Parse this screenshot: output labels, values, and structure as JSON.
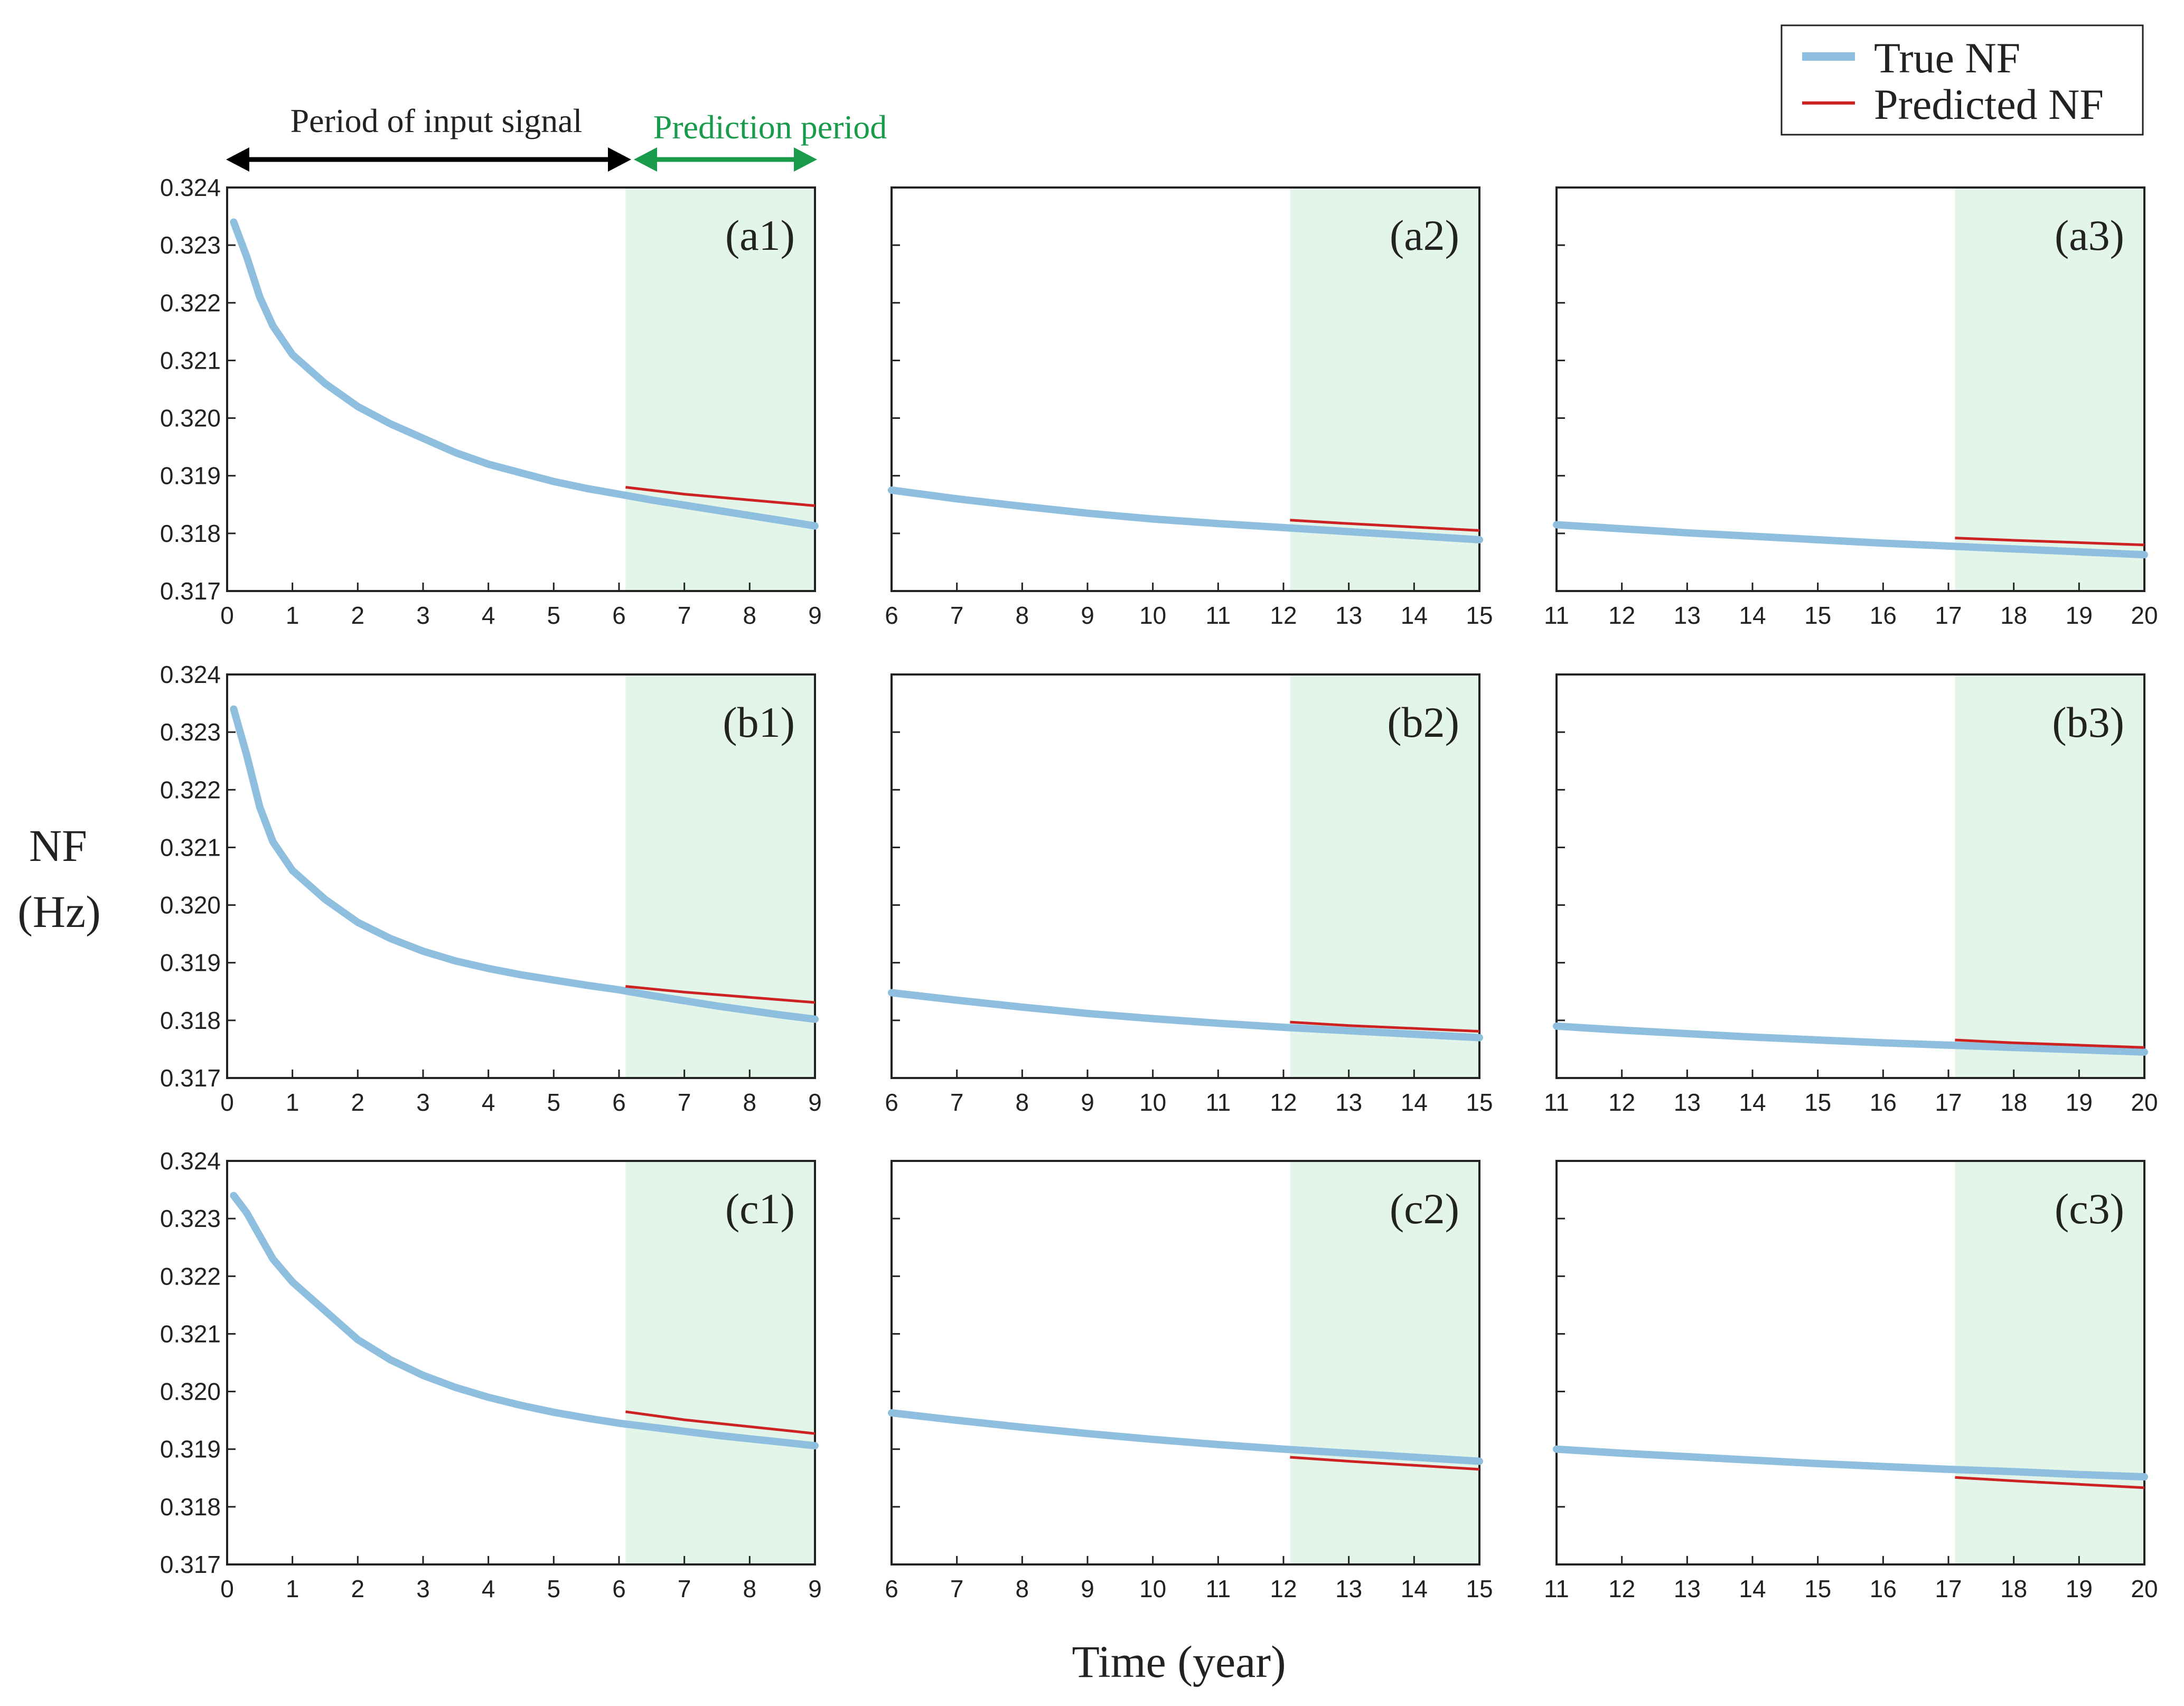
{
  "chart_data": {
    "type": "line",
    "ylabel_line1": "NF",
    "ylabel_line2": "(Hz)",
    "xlabel": "Time (year)",
    "ylim": [
      0.317,
      0.324
    ],
    "yticks": [
      "0.317",
      "0.318",
      "0.319",
      "0.320",
      "0.321",
      "0.322",
      "0.323",
      "0.324"
    ],
    "legend": {
      "position": "top-right",
      "entries": [
        {
          "label": "True NF",
          "color": "#8fbfdf"
        },
        {
          "label": "Predicted NF",
          "color": "#cc2222"
        }
      ]
    },
    "annotations": {
      "input_period": "Period of input signal",
      "prediction_period": "Prediction period"
    },
    "colors": {
      "true": "#8fbfdf",
      "predicted": "#cc2222",
      "shade": "#e3f5e9",
      "arrow_input": "#000000",
      "arrow_prediction": "#1a9b4b",
      "annotation_prediction": "#1a9b4b"
    },
    "panels": [
      {
        "id": "a1",
        "tag": "(a1)",
        "xlim": [
          0,
          9
        ],
        "xticks": [
          "0",
          "1",
          "2",
          "3",
          "4",
          "5",
          "6",
          "7",
          "8",
          "9"
        ],
        "shade": [
          6.1,
          9
        ],
        "true": {
          "x": [
            0.1,
            0.3,
            0.5,
            0.7,
            1,
            1.5,
            2,
            2.5,
            3,
            3.5,
            4,
            4.5,
            5,
            5.5,
            6,
            6.5,
            7,
            7.5,
            8,
            8.5,
            9
          ],
          "y": [
            0.3234,
            0.3228,
            0.3221,
            0.3216,
            0.3211,
            0.3206,
            0.3202,
            0.3199,
            0.31965,
            0.3194,
            0.3192,
            0.31905,
            0.3189,
            0.31878,
            0.31868,
            0.31858,
            0.31849,
            0.3184,
            0.31831,
            0.31822,
            0.31813
          ]
        },
        "predicted": {
          "x": [
            6.1,
            7,
            8,
            9
          ],
          "y": [
            0.3188,
            0.31868,
            0.31858,
            0.31848
          ]
        }
      },
      {
        "id": "a2",
        "tag": "(a2)",
        "xlim": [
          6,
          15
        ],
        "xticks": [
          "6",
          "7",
          "8",
          "9",
          "10",
          "11",
          "12",
          "13",
          "14",
          "15"
        ],
        "shade": [
          12.1,
          15
        ],
        "true": {
          "x": [
            6,
            7,
            8,
            9,
            10,
            11,
            12,
            13,
            14,
            15
          ],
          "y": [
            0.31875,
            0.3186,
            0.31847,
            0.31835,
            0.31825,
            0.31817,
            0.3181,
            0.31803,
            0.31796,
            0.31789
          ]
        },
        "predicted": {
          "x": [
            12.1,
            13,
            14,
            15
          ],
          "y": [
            0.31823,
            0.31817,
            0.31811,
            0.31805
          ]
        }
      },
      {
        "id": "a3",
        "tag": "(a3)",
        "xlim": [
          11,
          20
        ],
        "xticks": [
          "11",
          "12",
          "13",
          "14",
          "15",
          "16",
          "17",
          "18",
          "19",
          "20"
        ],
        "shade": [
          17.1,
          20
        ],
        "true": {
          "x": [
            11,
            12,
            13,
            14,
            15,
            16,
            17,
            18,
            19,
            20
          ],
          "y": [
            0.31815,
            0.31808,
            0.31801,
            0.31795,
            0.31789,
            0.31783,
            0.31778,
            0.31773,
            0.31768,
            0.31763
          ]
        },
        "predicted": {
          "x": [
            17.1,
            18,
            19,
            20
          ],
          "y": [
            0.31792,
            0.31788,
            0.31784,
            0.3178
          ]
        }
      },
      {
        "id": "b1",
        "tag": "(b1)",
        "xlim": [
          0,
          9
        ],
        "xticks": [
          "0",
          "1",
          "2",
          "3",
          "4",
          "5",
          "6",
          "7",
          "8",
          "9"
        ],
        "shade": [
          6.1,
          9
        ],
        "true": {
          "x": [
            0.1,
            0.3,
            0.5,
            0.7,
            1,
            1.5,
            2,
            2.5,
            3,
            3.5,
            4,
            4.5,
            5,
            5.5,
            6,
            6.5,
            7,
            7.5,
            8,
            8.5,
            9
          ],
          "y": [
            0.3234,
            0.3226,
            0.3217,
            0.3211,
            0.3206,
            0.3201,
            0.3197,
            0.31942,
            0.3192,
            0.31903,
            0.3189,
            0.31879,
            0.3187,
            0.31861,
            0.31853,
            0.31843,
            0.31834,
            0.31825,
            0.31817,
            0.31809,
            0.31802
          ]
        },
        "predicted": {
          "x": [
            6.1,
            7,
            8,
            9
          ],
          "y": [
            0.31859,
            0.31849,
            0.3184,
            0.31831
          ]
        }
      },
      {
        "id": "b2",
        "tag": "(b2)",
        "xlim": [
          6,
          15
        ],
        "xticks": [
          "6",
          "7",
          "8",
          "9",
          "10",
          "11",
          "12",
          "13",
          "14",
          "15"
        ],
        "shade": [
          12.1,
          15
        ],
        "true": {
          "x": [
            6,
            7,
            8,
            9,
            10,
            11,
            12,
            13,
            14,
            15
          ],
          "y": [
            0.31848,
            0.31835,
            0.31823,
            0.31812,
            0.31803,
            0.31795,
            0.31788,
            0.31782,
            0.31776,
            0.3177
          ]
        },
        "predicted": {
          "x": [
            12.1,
            13,
            14,
            15
          ],
          "y": [
            0.31797,
            0.31791,
            0.31786,
            0.31781
          ]
        }
      },
      {
        "id": "b3",
        "tag": "(b3)",
        "xlim": [
          11,
          20
        ],
        "xticks": [
          "11",
          "12",
          "13",
          "14",
          "15",
          "16",
          "17",
          "18",
          "19",
          "20"
        ],
        "shade": [
          17.1,
          20
        ],
        "true": {
          "x": [
            11,
            12,
            13,
            14,
            15,
            16,
            17,
            18,
            19,
            20
          ],
          "y": [
            0.3179,
            0.31783,
            0.31777,
            0.31771,
            0.31766,
            0.31761,
            0.31757,
            0.31753,
            0.31749,
            0.31745
          ]
        },
        "predicted": {
          "x": [
            17.1,
            18,
            19,
            20
          ],
          "y": [
            0.31766,
            0.31761,
            0.31757,
            0.31753
          ]
        }
      },
      {
        "id": "c1",
        "tag": "(c1)",
        "xlim": [
          0,
          9
        ],
        "xticks": [
          "0",
          "1",
          "2",
          "3",
          "4",
          "5",
          "6",
          "7",
          "8",
          "9"
        ],
        "shade": [
          6.1,
          9
        ],
        "true": {
          "x": [
            0.1,
            0.3,
            0.5,
            0.7,
            1,
            1.5,
            2,
            2.5,
            3,
            3.5,
            4,
            4.5,
            5,
            5.5,
            6,
            6.5,
            7,
            7.5,
            8,
            8.5,
            9
          ],
          "y": [
            0.3234,
            0.3231,
            0.3227,
            0.3223,
            0.3219,
            0.3214,
            0.3209,
            0.32055,
            0.32028,
            0.32007,
            0.3199,
            0.31976,
            0.31964,
            0.31954,
            0.31945,
            0.31938,
            0.31931,
            0.31924,
            0.31918,
            0.31912,
            0.31906
          ]
        },
        "predicted": {
          "x": [
            6.1,
            7,
            8,
            9
          ],
          "y": [
            0.31965,
            0.31951,
            0.31939,
            0.31927
          ]
        }
      },
      {
        "id": "c2",
        "tag": "(c2)",
        "xlim": [
          6,
          15
        ],
        "xticks": [
          "6",
          "7",
          "8",
          "9",
          "10",
          "11",
          "12",
          "13",
          "14",
          "15"
        ],
        "shade": [
          12.1,
          15
        ],
        "true": {
          "x": [
            6,
            7,
            8,
            9,
            10,
            11,
            12,
            13,
            14,
            15
          ],
          "y": [
            0.31963,
            0.3195,
            0.31938,
            0.31927,
            0.31917,
            0.31908,
            0.319,
            0.31893,
            0.31886,
            0.31879
          ]
        },
        "predicted": {
          "x": [
            12.1,
            13,
            14,
            15
          ],
          "y": [
            0.31886,
            0.31879,
            0.31872,
            0.31865
          ]
        }
      },
      {
        "id": "c3",
        "tag": "(c3)",
        "xlim": [
          11,
          20
        ],
        "xticks": [
          "11",
          "12",
          "13",
          "14",
          "15",
          "16",
          "17",
          "18",
          "19",
          "20"
        ],
        "shade": [
          17.1,
          20
        ],
        "true": {
          "x": [
            11,
            12,
            13,
            14,
            15,
            16,
            17,
            18,
            19,
            20
          ],
          "y": [
            0.319,
            0.31893,
            0.31887,
            0.31881,
            0.31875,
            0.3187,
            0.31865,
            0.31861,
            0.31856,
            0.31852
          ]
        },
        "predicted": {
          "x": [
            17.1,
            18,
            19,
            20
          ],
          "y": [
            0.31851,
            0.31845,
            0.31839,
            0.31833
          ]
        }
      }
    ]
  }
}
